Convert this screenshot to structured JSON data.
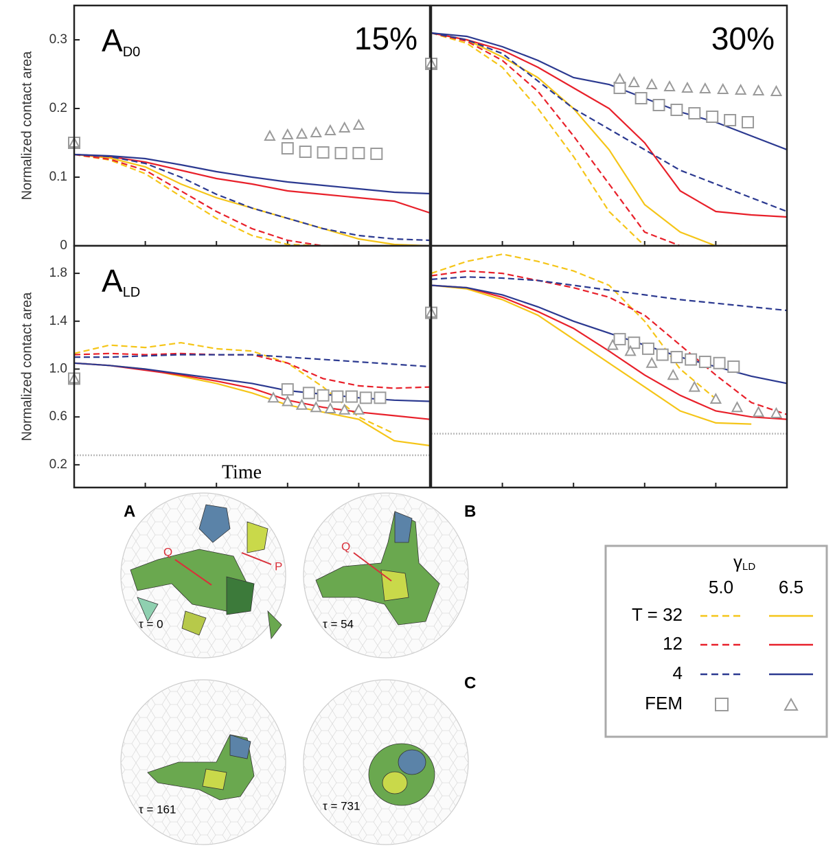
{
  "chart_data": [
    {
      "type": "line",
      "panel_label": "A",
      "panel_label_sub": "D0",
      "annotation": "15%",
      "ylabel": "Normalized contact area",
      "xlim": [
        0,
        100
      ],
      "ylim": [
        0,
        0.35
      ],
      "yticks": [
        0,
        0.1,
        0.2,
        0.3
      ],
      "x": [
        0,
        10,
        20,
        30,
        40,
        50,
        60,
        70,
        80,
        90,
        100
      ],
      "series": [
        {
          "color": "#f5c518",
          "dash": true,
          "values": [
            0.133,
            0.125,
            0.105,
            0.072,
            0.04,
            0.015,
            0.002,
            0,
            0,
            0,
            0
          ]
        },
        {
          "color": "#f5c518",
          "dash": false,
          "values": [
            0.133,
            0.128,
            0.115,
            0.09,
            0.07,
            0.055,
            0.04,
            0.025,
            0.01,
            0.002,
            0
          ]
        },
        {
          "color": "#e8202a",
          "dash": true,
          "values": [
            0.133,
            0.126,
            0.11,
            0.08,
            0.05,
            0.025,
            0.008,
            0,
            0,
            0,
            0
          ]
        },
        {
          "color": "#e8202a",
          "dash": false,
          "values": [
            0.133,
            0.13,
            0.122,
            0.11,
            0.098,
            0.09,
            0.08,
            0.075,
            0.07,
            0.065,
            0.048
          ]
        },
        {
          "color": "#2b3990",
          "dash": true,
          "values": [
            0.133,
            0.13,
            0.12,
            0.1,
            0.075,
            0.055,
            0.04,
            0.025,
            0.015,
            0.01,
            0.008
          ]
        },
        {
          "color": "#2b3990",
          "dash": false,
          "values": [
            0.133,
            0.131,
            0.127,
            0.118,
            0.108,
            0.1,
            0.093,
            0.088,
            0.083,
            0.078,
            0.076
          ]
        },
        {
          "color": "#9a9a9a",
          "marker": "square",
          "x": [
            0,
            60,
            65,
            70,
            75,
            80,
            85
          ],
          "values": [
            0.15,
            0.142,
            0.137,
            0.136,
            0.135,
            0.135,
            0.134
          ]
        },
        {
          "color": "#9a9a9a",
          "marker": "triangle",
          "x": [
            0,
            55,
            60,
            64,
            68,
            72,
            76,
            80
          ],
          "values": [
            0.15,
            0.16,
            0.162,
            0.163,
            0.165,
            0.168,
            0.172,
            0.176
          ]
        }
      ]
    },
    {
      "type": "line",
      "annotation": "30%",
      "xlim": [
        0,
        100
      ],
      "ylim": [
        0,
        0.35
      ],
      "x": [
        0,
        10,
        20,
        30,
        40,
        50,
        60,
        70,
        80,
        90,
        100
      ],
      "series": [
        {
          "color": "#f5c518",
          "dash": true,
          "values": [
            0.31,
            0.295,
            0.26,
            0.2,
            0.13,
            0.05,
            0,
            0,
            0,
            0,
            0
          ]
        },
        {
          "color": "#f5c518",
          "dash": false,
          "values": [
            0.31,
            0.3,
            0.275,
            0.245,
            0.2,
            0.14,
            0.06,
            0.02,
            0,
            0,
            0
          ]
        },
        {
          "color": "#e8202a",
          "dash": true,
          "values": [
            0.31,
            0.298,
            0.27,
            0.225,
            0.16,
            0.09,
            0.02,
            0,
            0,
            0,
            0
          ]
        },
        {
          "color": "#e8202a",
          "dash": false,
          "values": [
            0.31,
            0.3,
            0.285,
            0.26,
            0.23,
            0.2,
            0.15,
            0.08,
            0.05,
            0.045,
            0.042
          ]
        },
        {
          "color": "#2b3990",
          "dash": true,
          "values": [
            0.31,
            0.3,
            0.28,
            0.24,
            0.2,
            0.17,
            0.14,
            0.11,
            0.09,
            0.07,
            0.05
          ]
        },
        {
          "color": "#2b3990",
          "dash": false,
          "values": [
            0.31,
            0.305,
            0.29,
            0.27,
            0.245,
            0.235,
            0.215,
            0.195,
            0.18,
            0.16,
            0.14
          ]
        },
        {
          "color": "#9a9a9a",
          "marker": "square",
          "x": [
            0,
            53,
            59,
            64,
            69,
            74,
            79,
            84,
            89
          ],
          "values": [
            0.265,
            0.23,
            0.215,
            0.205,
            0.198,
            0.193,
            0.188,
            0.183,
            0.18
          ]
        },
        {
          "color": "#9a9a9a",
          "marker": "triangle",
          "x": [
            0,
            53,
            57,
            62,
            67,
            72,
            77,
            82,
            87,
            92,
            97
          ],
          "values": [
            0.265,
            0.243,
            0.238,
            0.235,
            0.232,
            0.23,
            0.229,
            0.228,
            0.227,
            0.226,
            0.225
          ]
        }
      ]
    },
    {
      "type": "line",
      "panel_label": "A",
      "panel_label_sub": "LD",
      "ylabel": "Normalized contact area",
      "xlabel": "Time",
      "xlim": [
        0,
        100
      ],
      "ylim": [
        0.01,
        2.03
      ],
      "yticks": [
        0.2,
        0.6,
        {
          "value": 1,
          "label": "1.0"
        },
        1.4,
        1.8
      ],
      "reference_line": 0.28,
      "x": [
        0,
        10,
        20,
        30,
        40,
        50,
        60,
        70,
        80,
        90,
        100
      ],
      "series": [
        {
          "color": "#f5c518",
          "dash": true,
          "values": [
            1.13,
            1.2,
            1.18,
            1.22,
            1.17,
            1.15,
            1.05,
            0.85,
            0.6,
            0.46,
            null
          ]
        },
        {
          "color": "#f5c518",
          "dash": false,
          "values": [
            1.05,
            1.03,
            1.0,
            0.94,
            0.88,
            0.8,
            0.7,
            0.64,
            0.58,
            0.4,
            0.36
          ]
        },
        {
          "color": "#e8202a",
          "dash": true,
          "values": [
            1.12,
            1.13,
            1.12,
            1.13,
            1.12,
            1.12,
            1.05,
            0.92,
            0.86,
            0.84,
            0.85
          ]
        },
        {
          "color": "#e8202a",
          "dash": false,
          "values": [
            1.05,
            1.03,
            0.99,
            0.95,
            0.9,
            0.84,
            0.74,
            0.68,
            0.64,
            0.61,
            0.58
          ]
        },
        {
          "color": "#2b3990",
          "dash": true,
          "values": [
            1.1,
            1.1,
            1.11,
            1.12,
            1.12,
            1.12,
            1.1,
            1.08,
            1.06,
            1.04,
            1.02
          ]
        },
        {
          "color": "#2b3990",
          "dash": false,
          "values": [
            1.05,
            1.03,
            1.0,
            0.96,
            0.92,
            0.88,
            0.82,
            0.79,
            0.76,
            0.74,
            0.73
          ]
        },
        {
          "color": "#9a9a9a",
          "marker": "square",
          "x": [
            0,
            60,
            66,
            70,
            74,
            78,
            82,
            86
          ],
          "values": [
            0.92,
            0.83,
            0.8,
            0.78,
            0.77,
            0.77,
            0.76,
            0.76
          ]
        },
        {
          "color": "#9a9a9a",
          "marker": "triangle",
          "x": [
            0,
            56,
            60,
            64,
            68,
            72,
            76,
            80
          ],
          "values": [
            0.92,
            0.76,
            0.73,
            0.7,
            0.68,
            0.67,
            0.66,
            0.66
          ]
        }
      ]
    },
    {
      "type": "line",
      "xlim": [
        0,
        100
      ],
      "ylim": [
        0.01,
        2.03
      ],
      "reference_line": 0.46,
      "x": [
        0,
        10,
        20,
        30,
        40,
        50,
        60,
        70,
        80,
        90,
        100
      ],
      "series": [
        {
          "color": "#f5c518",
          "dash": true,
          "values": [
            1.8,
            1.9,
            1.96,
            1.9,
            1.82,
            1.7,
            1.4,
            1.0,
            0.75,
            null,
            null
          ]
        },
        {
          "color": "#f5c518",
          "dash": false,
          "values": [
            1.7,
            1.67,
            1.58,
            1.45,
            1.25,
            1.05,
            0.85,
            0.65,
            0.55,
            0.54,
            null
          ]
        },
        {
          "color": "#e8202a",
          "dash": true,
          "values": [
            1.78,
            1.82,
            1.8,
            1.74,
            1.68,
            1.6,
            1.45,
            1.2,
            0.95,
            0.72,
            0.62
          ]
        },
        {
          "color": "#e8202a",
          "dash": false,
          "values": [
            1.7,
            1.68,
            1.6,
            1.48,
            1.34,
            1.15,
            0.95,
            0.78,
            0.65,
            0.6,
            0.58
          ]
        },
        {
          "color": "#2b3990",
          "dash": true,
          "values": [
            1.75,
            1.77,
            1.76,
            1.74,
            1.7,
            1.66,
            1.62,
            1.58,
            1.55,
            1.52,
            1.49
          ]
        },
        {
          "color": "#2b3990",
          "dash": false,
          "values": [
            1.7,
            1.68,
            1.62,
            1.52,
            1.4,
            1.3,
            1.2,
            1.1,
            1.02,
            0.94,
            0.88
          ]
        },
        {
          "color": "#9a9a9a",
          "marker": "square",
          "x": [
            0,
            53,
            57,
            61,
            65,
            69,
            73,
            77,
            81,
            85
          ],
          "values": [
            1.47,
            1.25,
            1.22,
            1.17,
            1.12,
            1.1,
            1.08,
            1.06,
            1.05,
            1.02
          ]
        },
        {
          "color": "#9a9a9a",
          "marker": "triangle",
          "x": [
            0,
            51,
            56,
            62,
            68,
            74,
            80,
            86,
            92,
            97
          ],
          "values": [
            1.47,
            1.2,
            1.15,
            1.05,
            0.95,
            0.85,
            0.75,
            0.68,
            0.64,
            0.63
          ]
        }
      ]
    }
  ],
  "legend": {
    "title": "γ",
    "title_sub": "LD",
    "columns": [
      "5.0",
      "6.5"
    ],
    "rows": [
      "T = 32",
      "12",
      "4",
      "FEM"
    ]
  },
  "figure": {
    "labels": [
      "A",
      "B",
      "C"
    ],
    "markers": [
      "Q",
      "P",
      "Q"
    ],
    "frames": [
      "τ = 0",
      "τ = 54",
      "τ = 161",
      "τ = 731"
    ]
  }
}
